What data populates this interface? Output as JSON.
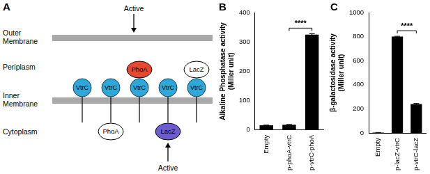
{
  "panel_labels": [
    "A",
    "B",
    "C"
  ],
  "diagram": {
    "compartments": [
      "Outer Membrane",
      "Periplasm",
      "Inner Membrane",
      "Cytoplasm"
    ],
    "anchor": {
      "label": "VtrC",
      "color": "#2ea7d9"
    },
    "active_label": "Active",
    "constructs": [
      {},
      {
        "fusion": {
          "label": "PhoA",
          "side": "Cytoplasm",
          "active": false,
          "color": "#ffffff"
        }
      },
      {
        "fusion": {
          "label": "PhoA",
          "side": "Periplasm",
          "active": true,
          "color": "#e8472f"
        }
      },
      {
        "fusion": {
          "label": "LacZ",
          "side": "Cytoplasm",
          "active": true,
          "color": "#6c5ccf"
        }
      },
      {
        "fusion": {
          "label": "LacZ",
          "side": "Periplasm",
          "active": false,
          "color": "#ffffff"
        }
      }
    ]
  },
  "chart_data": [
    {
      "type": "bar",
      "y_label": [
        "Alkaline Phosphatase activity",
        "(Miller unit)"
      ],
      "categories": [
        "Empty",
        "p-phoA-vtrC",
        "p-vtrC-phoA"
      ],
      "values": [
        16,
        18,
        325
      ],
      "errors": [
        1,
        1,
        3
      ],
      "color": "#000000",
      "ylim": [
        0,
        400
      ],
      "yticks": [
        0,
        100,
        200,
        300,
        400
      ],
      "grid": false,
      "annotations": [
        {
          "text": "****",
          "between": [
            "p-phoA-vtrC",
            "p-vtrC-phoA"
          ]
        }
      ]
    },
    {
      "type": "bar",
      "y_label": [
        "β-galactosidase activity",
        "(Miller unit)"
      ],
      "categories": [
        "Empty",
        "p-lacZ-vtrC",
        "p-vtrC-lacZ"
      ],
      "values": [
        3,
        800,
        240
      ],
      "errors": [
        1,
        3,
        5
      ],
      "color": "#000000",
      "ylim": [
        0,
        1000
      ],
      "yticks": [
        0,
        200,
        400,
        600,
        800,
        1000
      ],
      "grid": false,
      "annotations": [
        {
          "text": "****",
          "between": [
            "p-lacZ-vtrC",
            "p-vtrC-lacZ"
          ]
        }
      ]
    }
  ]
}
